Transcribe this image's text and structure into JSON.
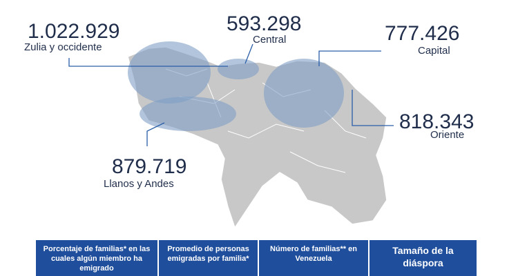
{
  "regions": [
    {
      "value": "1.022.929",
      "name": "Zulia y occidente"
    },
    {
      "value": "593.298",
      "name": "Central"
    },
    {
      "value": "777.426",
      "name": "Capital"
    },
    {
      "value": "818.343",
      "name": "Oriente"
    },
    {
      "value": "879.719",
      "name": "Llanos y Andes"
    }
  ],
  "table": {
    "headers": [
      "Porcentaje de familias* en las cuales algún miembro ha emigrado",
      "Promedio de personas emigradas por familia*",
      "Número de familias** en Venezuela",
      "Tamaño de la diáspora"
    ]
  }
}
